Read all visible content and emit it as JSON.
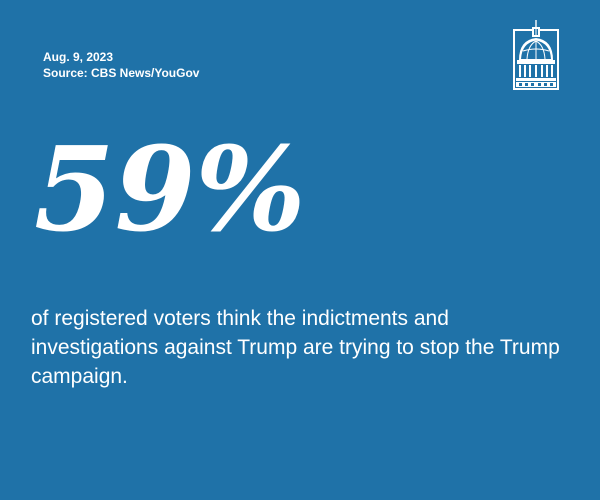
{
  "meta": {
    "date": "Aug. 9, 2023",
    "source": "Source: CBS News/YouGov"
  },
  "stat": {
    "value": "59%"
  },
  "statement": {
    "text": "of registered voters think the indictments and investigations against Trump are trying to stop the Trump campaign."
  },
  "logo": {
    "icon": "capitol-dome-icon"
  },
  "colors": {
    "background": "#1f72a8",
    "text": "#ffffff"
  }
}
